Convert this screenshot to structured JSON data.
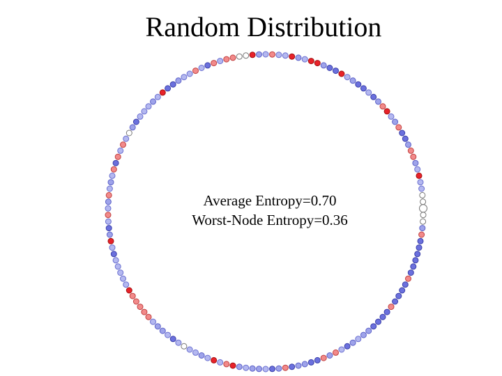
{
  "title": "Random Distribution",
  "annotation": {
    "average": "Average Entropy=0.70",
    "worst": "Worst-Node Entropy=0.36"
  }
}
